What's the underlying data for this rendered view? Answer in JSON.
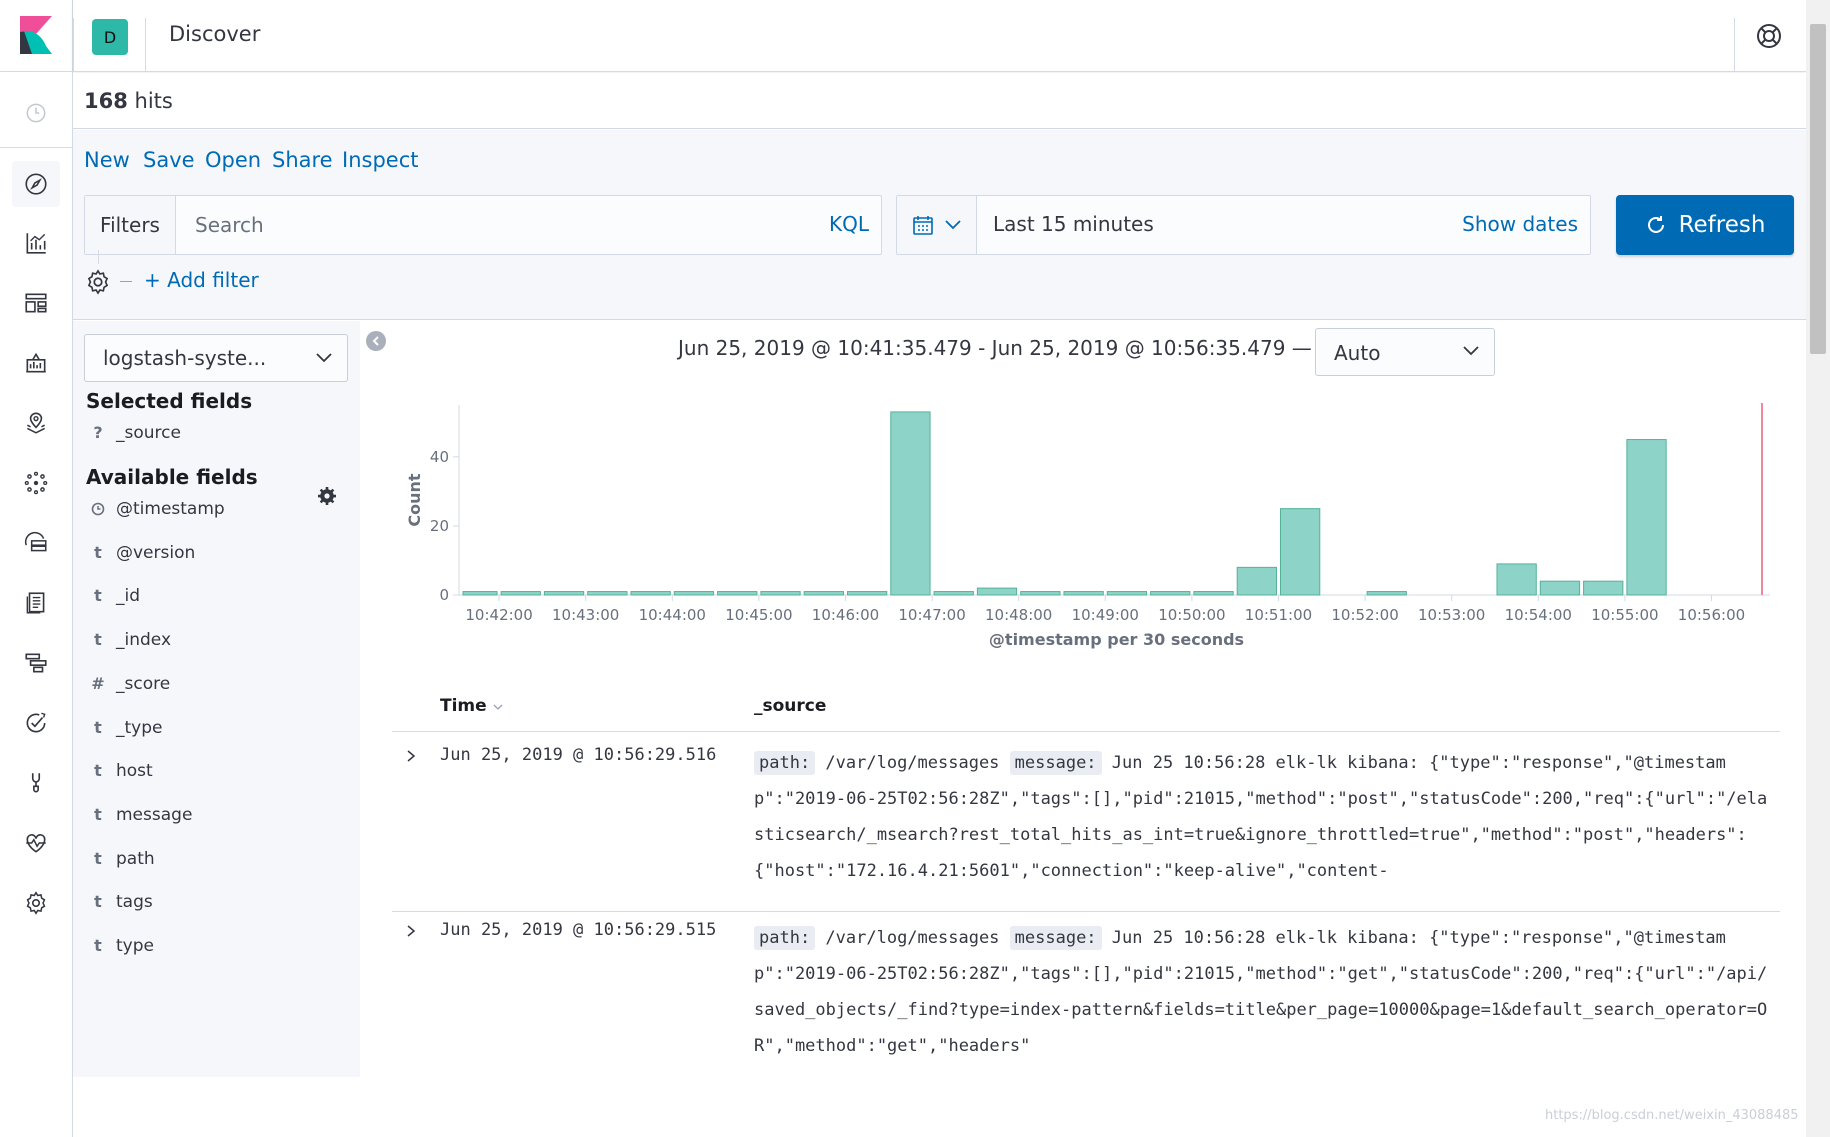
{
  "header": {
    "space_initial": "D",
    "app_title": "Discover"
  },
  "hits": {
    "count": "168",
    "label": "hits"
  },
  "top_menu": [
    "New",
    "Save",
    "Open",
    "Share",
    "Inspect"
  ],
  "query": {
    "filters_label": "Filters",
    "search_placeholder": "Search",
    "language": "KQL"
  },
  "date_picker": {
    "range": "Last 15 minutes",
    "show_dates": "Show dates"
  },
  "refresh_label": "Refresh",
  "add_filter_label": "+ Add filter",
  "sidebar": {
    "index_pattern": "logstash-syste...",
    "selected_title": "Selected fields",
    "selected_fields": [
      {
        "type": "?",
        "name": "_source"
      }
    ],
    "available_title": "Available fields",
    "available_fields": [
      {
        "type": "clock",
        "name": "@timestamp"
      },
      {
        "type": "t",
        "name": "@version"
      },
      {
        "type": "t",
        "name": "_id"
      },
      {
        "type": "t",
        "name": "_index"
      },
      {
        "type": "#",
        "name": "_score"
      },
      {
        "type": "t",
        "name": "_type"
      },
      {
        "type": "t",
        "name": "host"
      },
      {
        "type": "t",
        "name": "message"
      },
      {
        "type": "t",
        "name": "path"
      },
      {
        "type": "t",
        "name": "tags"
      },
      {
        "type": "t",
        "name": "type"
      }
    ]
  },
  "chart_header": {
    "range_text": "Jun 25, 2019 @ 10:41:35.479 - Jun 25, 2019 @ 10:56:35.479 —",
    "interval": "Auto"
  },
  "chart_data": {
    "type": "bar",
    "xlabel": "@timestamp per 30 seconds",
    "ylabel": "Count",
    "ylim": [
      0,
      55
    ],
    "y_ticks": [
      0,
      20,
      40
    ],
    "x_tick_labels": [
      "10:42:00",
      "10:43:00",
      "10:44:00",
      "10:45:00",
      "10:46:00",
      "10:47:00",
      "10:48:00",
      "10:49:00",
      "10:50:00",
      "10:51:00",
      "10:52:00",
      "10:53:00",
      "10:54:00",
      "10:55:00",
      "10:56:00"
    ],
    "categories": [
      "10:42:00",
      "10:42:30",
      "10:43:00",
      "10:43:30",
      "10:44:00",
      "10:44:30",
      "10:45:00",
      "10:45:30",
      "10:46:00",
      "10:46:30",
      "10:47:00",
      "10:47:30",
      "10:48:00",
      "10:48:30",
      "10:49:00",
      "10:49:30",
      "10:50:00",
      "10:50:30",
      "10:51:00",
      "10:51:30",
      "10:52:00",
      "10:52:30",
      "10:53:00",
      "10:53:30",
      "10:54:00",
      "10:54:30",
      "10:55:00",
      "10:55:30",
      "10:56:00",
      "10:56:30"
    ],
    "values": [
      1,
      1,
      1,
      1,
      1,
      1,
      1,
      1,
      1,
      1,
      53,
      1,
      2,
      1,
      1,
      1,
      1,
      1,
      8,
      25,
      0,
      1,
      0,
      0,
      9,
      4,
      4,
      45,
      0,
      0
    ],
    "first_bucket": "10:41:30",
    "bar_color": "#8dd3c7",
    "bar_stroke": "#54b399",
    "current_time_marker_color": "#f0879a"
  },
  "table": {
    "headers": {
      "time": "Time",
      "source": "_source"
    },
    "rows": [
      {
        "time": "Jun 25, 2019 @ 10:56:29.516",
        "fields": [
          {
            "key": "path:",
            "value": " /var/log/messages "
          },
          {
            "key": "message:",
            "value": " Jun 25 10:56:28 elk-lk kibana: {\"type\":\"response\",\"@timestamp\":\"2019-06-25T02:56:28Z\",\"tags\":[],\"pid\":21015,\"method\":\"post\",\"statusCode\":200,\"req\":{\"url\":\"/elasticsearch/_msearch?rest_total_hits_as_int=true&ignore_throttled=true\",\"method\":\"post\",\"headers\":{\"host\":\"172.16.4.21:5601\",\"connection\":\"keep-alive\",\"content-"
          }
        ]
      },
      {
        "time": "Jun 25, 2019 @ 10:56:29.515",
        "fields": [
          {
            "key": "path:",
            "value": " /var/log/messages "
          },
          {
            "key": "message:",
            "value": " Jun 25 10:56:28 elk-lk kibana: {\"type\":\"response\",\"@timestamp\":\"2019-06-25T02:56:28Z\",\"tags\":[],\"pid\":21015,\"method\":\"get\",\"statusCode\":200,\"req\":{\"url\":\"/api/saved_objects/_find?type=index-pattern&fields=title&per_page=10000&page=1&default_search_operator=OR\",\"method\":\"get\",\"headers\""
          }
        ]
      }
    ]
  },
  "watermark": "https://blog.csdn.net/weixin_43088485",
  "nav_icons": [
    "clock-icon",
    "discover-icon",
    "visualize-icon",
    "dashboard-icon",
    "canvas-icon",
    "maps-icon",
    "ml-icon",
    "infrastructure-icon",
    "logs-icon",
    "apm-icon",
    "uptime-icon",
    "dev-tools-icon",
    "monitoring-icon",
    "management-icon"
  ]
}
